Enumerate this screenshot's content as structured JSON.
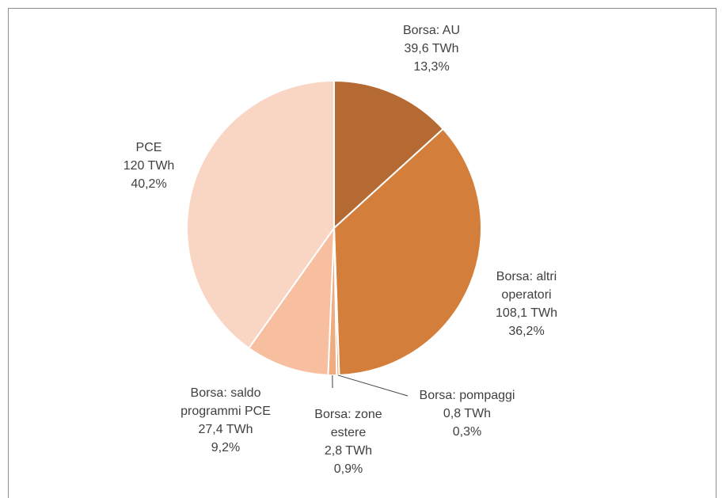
{
  "chart_data": {
    "type": "pie",
    "categories": [
      "Borsa: AU",
      "Borsa: altri operatori",
      "Borsa: pompaggi",
      "Borsa: zone estere",
      "Borsa: saldo programmi PCE",
      "PCE"
    ],
    "values": [
      39.6,
      108.1,
      0.8,
      2.8,
      27.4,
      120
    ],
    "value_labels": [
      "39,6 TWh",
      "108,1 TWh",
      "0,8 TWh",
      "2,8 TWh",
      "27,4 TWh",
      "120 TWh"
    ],
    "percentages": [
      13.3,
      36.2,
      0.3,
      0.9,
      9.2,
      40.2
    ],
    "percentage_labels": [
      "13,3%",
      "36,2%",
      "0,3%",
      "0,9%",
      "9,2%",
      "40,2%"
    ],
    "colors": [
      "#b46a32",
      "#d37e3a",
      "#e39a62",
      "#eeac80",
      "#f7bfa0",
      "#f9d5c3"
    ]
  }
}
